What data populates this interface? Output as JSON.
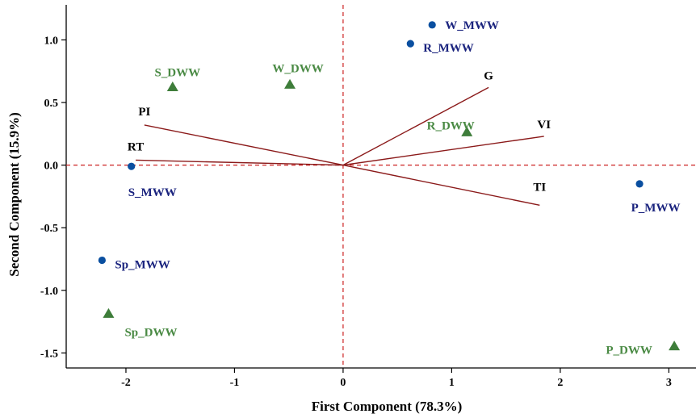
{
  "chart_data": {
    "type": "scatter",
    "title": "",
    "xlabel": "First Component (78.3%)",
    "ylabel": "Second Component (15.9%)",
    "xlim": [
      -2.55,
      3.25
    ],
    "ylim": [
      -1.62,
      1.28
    ],
    "x_ticks": [
      -2,
      -1,
      0,
      1,
      2,
      3
    ],
    "y_ticks": [
      -1.5,
      -1.0,
      -0.5,
      0.0,
      0.5,
      1.0
    ],
    "x_tick_labels": [
      "-2",
      "-1",
      "0",
      "1",
      "2",
      "3"
    ],
    "y_tick_labels": [
      "-1.5",
      "-1.0",
      "-0.5",
      "0.0",
      "0.5",
      "1.0"
    ],
    "reference_lines": {
      "x": 0,
      "y": 0,
      "style": "dashed",
      "color": "#cc2222"
    },
    "grid": false,
    "colors": {
      "mww_marker": "#0a4fa0",
      "mww_label": "#1a237e",
      "dww_marker": "#3e7d3a",
      "dww_label": "#4a8a44",
      "vector": "#8b1a1a",
      "axis": "#000000"
    },
    "series": [
      {
        "marker": "circle",
        "points": [
          {
            "label": "W_MWW",
            "x": 0.82,
            "y": 1.12
          },
          {
            "label": "R_MWW",
            "x": 0.62,
            "y": 0.97
          },
          {
            "label": "S_MWW",
            "x": -1.95,
            "y": -0.01
          },
          {
            "label": "P_MWW",
            "x": 2.73,
            "y": -0.15
          },
          {
            "label": "Sp_MWW",
            "x": -2.22,
            "y": -0.76
          }
        ]
      },
      {
        "marker": "triangle",
        "points": [
          {
            "label": "S_DWW",
            "x": -1.57,
            "y": 0.62
          },
          {
            "label": "W_DWW",
            "x": -0.49,
            "y": 0.64
          },
          {
            "label": "R_DWW",
            "x": 1.14,
            "y": 0.26
          },
          {
            "label": "Sp_DWW",
            "x": -2.16,
            "y": -1.19
          },
          {
            "label": "P_DWW",
            "x": 3.05,
            "y": -1.45
          }
        ]
      }
    ],
    "vectors": [
      {
        "label": "G",
        "x": 1.34,
        "y": 0.62
      },
      {
        "label": "VI",
        "x": 1.85,
        "y": 0.23
      },
      {
        "label": "TI",
        "x": 1.81,
        "y": -0.32
      },
      {
        "label": "PI",
        "x": -1.83,
        "y": 0.32
      },
      {
        "label": "RT",
        "x": -1.91,
        "y": 0.04
      }
    ]
  }
}
